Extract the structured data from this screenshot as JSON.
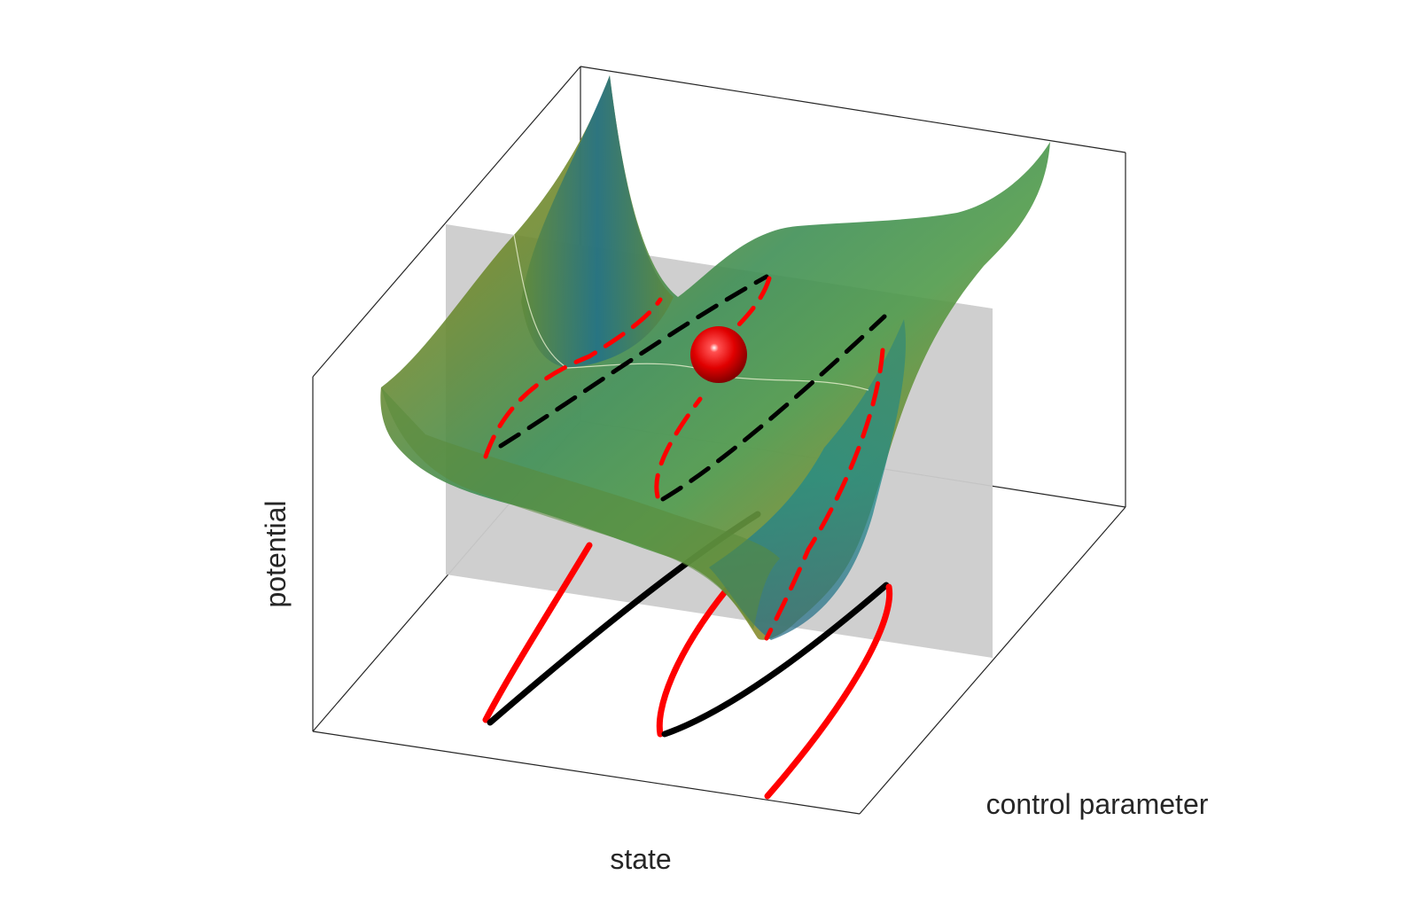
{
  "labels": {
    "x_axis": "state",
    "y_axis": "control parameter",
    "z_axis": "potential"
  },
  "colors": {
    "stable_branch": "#ff0000",
    "unstable_branch": "#000000",
    "surface_olive": "#8a8a22",
    "surface_teal": "#1f8a8a",
    "surface_green": "#4a9a4a",
    "plane": "#cccccc",
    "ball": "#e00000",
    "box_lines": "#262626"
  }
}
